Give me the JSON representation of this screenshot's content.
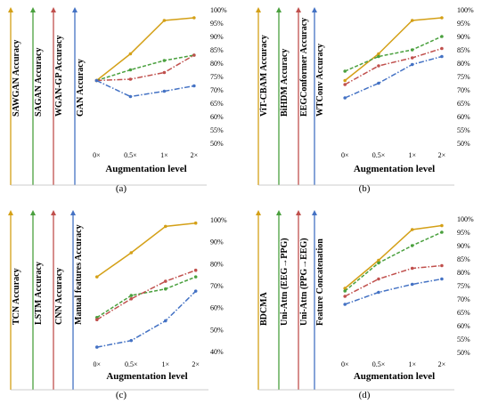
{
  "chart_data": [
    {
      "type": "line",
      "panel_label": "(a)",
      "xlabel": "Augmentation level",
      "categories": [
        "0×",
        "0.5×",
        "1×",
        "2×"
      ],
      "ylim": [
        50,
        100
      ],
      "ytick_labels": [
        "50%",
        "55%",
        "60%",
        "65%",
        "70%",
        "75%",
        "80%",
        "85%",
        "90%",
        "95%",
        "100%"
      ],
      "legend": [
        "SAWGAN Accuracy",
        "SAGAN Accuracy",
        "WGAN-GP Accuracy",
        "GAN Accuracy"
      ],
      "series": [
        {
          "name": "SAWGAN Accuracy",
          "color": "#d4a017",
          "style": "solid",
          "values": [
            73.5,
            83.5,
            96,
            97
          ]
        },
        {
          "name": "SAGAN Accuracy",
          "color": "#4aa03e",
          "style": "dashed",
          "values": [
            73.5,
            77.5,
            81,
            83
          ]
        },
        {
          "name": "WGAN-GP Accuracy",
          "color": "#c0504d",
          "style": "dashdot",
          "values": [
            73.5,
            74,
            76.5,
            83
          ]
        },
        {
          "name": "GAN Accuracy",
          "color": "#4472c4",
          "style": "dashdot",
          "values": [
            73.5,
            67.5,
            69.5,
            71.5
          ]
        }
      ]
    },
    {
      "type": "line",
      "panel_label": "(b)",
      "xlabel": "Augmentation level",
      "categories": [
        "0×",
        "0.5×",
        "1×",
        "2×"
      ],
      "ylim": [
        50,
        100
      ],
      "ytick_labels": [
        "50%",
        "55%",
        "60%",
        "65%",
        "70%",
        "75%",
        "80%",
        "85%",
        "90%",
        "95%",
        "100%"
      ],
      "legend": [
        "ViT-CBAM Accuracy",
        "BiHDM Accuracy",
        "EEGConformer Accuracy",
        "WTConv Accuracy"
      ],
      "series": [
        {
          "name": "ViT-CBAM Accuracy",
          "color": "#d4a017",
          "style": "solid",
          "values": [
            73.5,
            83.5,
            96,
            97
          ]
        },
        {
          "name": "BiHDM Accuracy",
          "color": "#4aa03e",
          "style": "dashed",
          "values": [
            77,
            82.5,
            85,
            90
          ]
        },
        {
          "name": "EEGConformer Accuracy",
          "color": "#c0504d",
          "style": "dashdot",
          "values": [
            72,
            79,
            82,
            85.5
          ]
        },
        {
          "name": "WTConv Accuracy",
          "color": "#4472c4",
          "style": "dashdot",
          "values": [
            67,
            72.5,
            79.5,
            82.5
          ]
        }
      ]
    },
    {
      "type": "line",
      "panel_label": "(c)",
      "xlabel": "Augmentation level",
      "categories": [
        "0×",
        "0.5×",
        "1×",
        "2×"
      ],
      "ylim": [
        40,
        100
      ],
      "ytick_labels": [
        "40%",
        "50%",
        "60%",
        "70%",
        "80%",
        "90%",
        "100%"
      ],
      "legend": [
        "TCN Accuracy",
        "LSTM Accuracy",
        "CNN Accuracy",
        "Manual features Accuracy"
      ],
      "series": [
        {
          "name": "TCN Accuracy",
          "color": "#d4a017",
          "style": "solid",
          "values": [
            74,
            85,
            97,
            98.5
          ]
        },
        {
          "name": "LSTM Accuracy",
          "color": "#4aa03e",
          "style": "dashed",
          "values": [
            55.5,
            65.5,
            68.5,
            74
          ]
        },
        {
          "name": "CNN Accuracy",
          "color": "#c0504d",
          "style": "dashdot",
          "values": [
            54.5,
            64,
            72,
            77
          ]
        },
        {
          "name": "Manual features Accuracy",
          "color": "#4472c4",
          "style": "dashdot",
          "values": [
            42,
            45,
            54,
            67.5
          ]
        }
      ]
    },
    {
      "type": "line",
      "panel_label": "(d)",
      "xlabel": "Augmentation level",
      "categories": [
        "0×",
        "0.5×",
        "1×",
        "2×"
      ],
      "ylim": [
        50,
        100
      ],
      "ytick_labels": [
        "50%",
        "55%",
        "60%",
        "65%",
        "70%",
        "75%",
        "80%",
        "85%",
        "90%",
        "95%",
        "100%"
      ],
      "legend": [
        "BDCMA",
        "Uni-Attn (EEG→PPG)",
        "Uni-Attn (PPG→EEG)",
        "Feature Concatenation"
      ],
      "series": [
        {
          "name": "BDCMA",
          "color": "#d4a017",
          "style": "solid",
          "values": [
            74,
            84.5,
            96,
            97.5
          ]
        },
        {
          "name": "Uni-Attn (EEG→PPG)",
          "color": "#4aa03e",
          "style": "dashed",
          "values": [
            73,
            83.5,
            90,
            95
          ]
        },
        {
          "name": "Uni-Attn (PPG→EEG)",
          "color": "#c0504d",
          "style": "dashdot",
          "values": [
            71,
            77.5,
            81.5,
            82.5
          ]
        },
        {
          "name": "Feature Concatenation",
          "color": "#4472c4",
          "style": "dashdot",
          "values": [
            68,
            72.5,
            75.5,
            77.5
          ]
        }
      ]
    }
  ]
}
